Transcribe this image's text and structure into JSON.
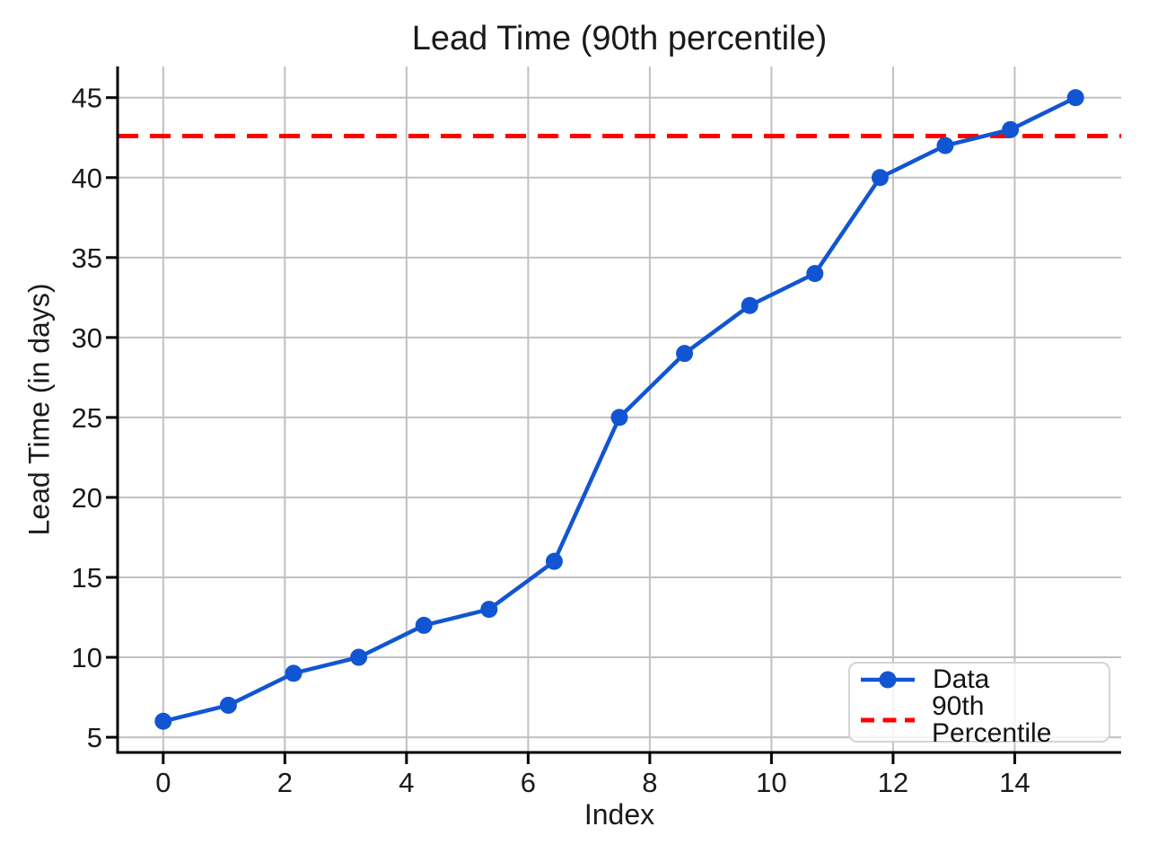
{
  "chart_data": {
    "type": "line",
    "title": "Lead Time (90th percentile)",
    "xlabel": "Index",
    "ylabel": "Lead Time (in days)",
    "x": [
      0,
      1.071,
      2.143,
      3.214,
      4.286,
      5.357,
      6.429,
      7.5,
      8.571,
      9.643,
      10.714,
      11.786,
      12.857,
      13.929,
      15
    ],
    "series": [
      {
        "name": "Data",
        "values": [
          6,
          7,
          9,
          10,
          12,
          13,
          16,
          25,
          29,
          32,
          34,
          40,
          42,
          43,
          45
        ],
        "color": "#1255d2",
        "marker": "circle",
        "line_style": "solid"
      }
    ],
    "reference_lines": [
      {
        "name": "90th Percentile",
        "value": 42.6,
        "color": "#ff0000",
        "line_style": "dashed"
      }
    ],
    "xticks": [
      0,
      2,
      4,
      6,
      8,
      10,
      12,
      14
    ],
    "yticks": [
      5,
      10,
      15,
      20,
      25,
      30,
      35,
      40,
      45
    ],
    "xlim": [
      -0.75,
      15.75
    ],
    "ylim": [
      4.05,
      46.95
    ],
    "grid": true,
    "grid_color": "#c0c0c0",
    "axis_color": "#000000",
    "text_color": "#1a1a1a",
    "legend": {
      "position": "lower right",
      "entries": [
        "Data",
        "90th Percentile"
      ]
    }
  }
}
